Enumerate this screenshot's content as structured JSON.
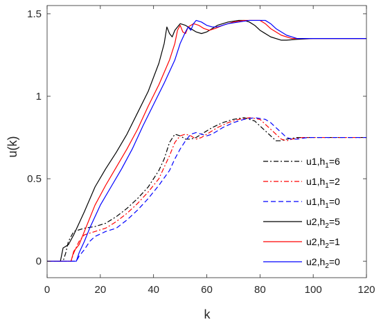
{
  "chart_data": {
    "type": "line",
    "title": "",
    "xlabel": "k",
    "ylabel": "u(k)",
    "xlim": [
      0,
      120
    ],
    "ylim": [
      -0.1,
      1.55
    ],
    "xticks": [
      0,
      20,
      40,
      60,
      80,
      100,
      120
    ],
    "yticks": [
      0,
      0.5,
      1,
      1.5
    ],
    "xtick_labels": [
      "0",
      "20",
      "40",
      "60",
      "80",
      "100",
      "120"
    ],
    "ytick_labels": [
      "0",
      "0.5",
      "1",
      "1.5"
    ],
    "grid": false,
    "legend_position": "bottom-right",
    "series": [
      {
        "name": "u1,h1=6",
        "label_main": "u1,h",
        "label_sub": "1",
        "label_tail": "=6",
        "color": "#000000",
        "dash": "dashdot",
        "points": [
          [
            0,
            0
          ],
          [
            6,
            0
          ],
          [
            7,
            0.05
          ],
          [
            8,
            0.12
          ],
          [
            10,
            0.18
          ],
          [
            14,
            0.2
          ],
          [
            18,
            0.21
          ],
          [
            22,
            0.23
          ],
          [
            26,
            0.27
          ],
          [
            30,
            0.32
          ],
          [
            34,
            0.38
          ],
          [
            38,
            0.45
          ],
          [
            42,
            0.55
          ],
          [
            44,
            0.62
          ],
          [
            46,
            0.72
          ],
          [
            48,
            0.77
          ],
          [
            50,
            0.76
          ],
          [
            52,
            0.74
          ],
          [
            54,
            0.74
          ],
          [
            56,
            0.75
          ],
          [
            58,
            0.77
          ],
          [
            62,
            0.81
          ],
          [
            66,
            0.84
          ],
          [
            70,
            0.86
          ],
          [
            74,
            0.87
          ],
          [
            78,
            0.85
          ],
          [
            80,
            0.82
          ],
          [
            84,
            0.76
          ],
          [
            86,
            0.73
          ],
          [
            88,
            0.73
          ],
          [
            90,
            0.74
          ],
          [
            94,
            0.75
          ],
          [
            100,
            0.75
          ],
          [
            120,
            0.75
          ]
        ]
      },
      {
        "name": "u1,h1=2",
        "label_main": "u1,h",
        "label_sub": "1",
        "label_tail": "=2",
        "color": "#ff0000",
        "dash": "dashdot",
        "points": [
          [
            0,
            0
          ],
          [
            9,
            0
          ],
          [
            10,
            0.05
          ],
          [
            12,
            0.12
          ],
          [
            14,
            0.16
          ],
          [
            18,
            0.18
          ],
          [
            22,
            0.2
          ],
          [
            26,
            0.24
          ],
          [
            30,
            0.29
          ],
          [
            34,
            0.35
          ],
          [
            38,
            0.42
          ],
          [
            42,
            0.5
          ],
          [
            44,
            0.57
          ],
          [
            46,
            0.64
          ],
          [
            48,
            0.72
          ],
          [
            50,
            0.76
          ],
          [
            52,
            0.77
          ],
          [
            54,
            0.76
          ],
          [
            56,
            0.74
          ],
          [
            58,
            0.75
          ],
          [
            60,
            0.77
          ],
          [
            64,
            0.81
          ],
          [
            68,
            0.84
          ],
          [
            72,
            0.86
          ],
          [
            76,
            0.87
          ],
          [
            80,
            0.86
          ],
          [
            82,
            0.83
          ],
          [
            86,
            0.77
          ],
          [
            88,
            0.74
          ],
          [
            90,
            0.73
          ],
          [
            92,
            0.74
          ],
          [
            96,
            0.75
          ],
          [
            100,
            0.75
          ],
          [
            120,
            0.75
          ]
        ]
      },
      {
        "name": "u1,h1=0",
        "label_main": "u1,h",
        "label_sub": "1",
        "label_tail": "=0",
        "color": "#0000ff",
        "dash": "dashed",
        "points": [
          [
            0,
            0
          ],
          [
            11,
            0
          ],
          [
            12,
            0.03
          ],
          [
            14,
            0.07
          ],
          [
            16,
            0.12
          ],
          [
            18,
            0.15
          ],
          [
            22,
            0.18
          ],
          [
            26,
            0.2
          ],
          [
            30,
            0.25
          ],
          [
            34,
            0.31
          ],
          [
            38,
            0.38
          ],
          [
            42,
            0.46
          ],
          [
            46,
            0.55
          ],
          [
            48,
            0.62
          ],
          [
            50,
            0.68
          ],
          [
            52,
            0.73
          ],
          [
            54,
            0.77
          ],
          [
            56,
            0.78
          ],
          [
            58,
            0.77
          ],
          [
            60,
            0.76
          ],
          [
            62,
            0.77
          ],
          [
            66,
            0.81
          ],
          [
            70,
            0.84
          ],
          [
            74,
            0.86
          ],
          [
            78,
            0.87
          ],
          [
            82,
            0.86
          ],
          [
            84,
            0.84
          ],
          [
            88,
            0.78
          ],
          [
            90,
            0.75
          ],
          [
            92,
            0.74
          ],
          [
            94,
            0.74
          ],
          [
            98,
            0.75
          ],
          [
            100,
            0.75
          ],
          [
            120,
            0.75
          ]
        ]
      },
      {
        "name": "u2,h2=5",
        "label_main": "u2,h",
        "label_sub": "2",
        "label_tail": "=5",
        "color": "#000000",
        "dash": "solid",
        "points": [
          [
            0,
            0
          ],
          [
            5,
            0
          ],
          [
            6,
            0.08
          ],
          [
            8,
            0.1
          ],
          [
            10,
            0.16
          ],
          [
            14,
            0.3
          ],
          [
            18,
            0.45
          ],
          [
            22,
            0.56
          ],
          [
            26,
            0.66
          ],
          [
            30,
            0.77
          ],
          [
            34,
            0.9
          ],
          [
            38,
            1.03
          ],
          [
            42,
            1.2
          ],
          [
            44,
            1.32
          ],
          [
            45,
            1.42
          ],
          [
            46,
            1.38
          ],
          [
            47,
            1.36
          ],
          [
            48,
            1.4
          ],
          [
            50,
            1.44
          ],
          [
            52,
            1.43
          ],
          [
            54,
            1.41
          ],
          [
            56,
            1.39
          ],
          [
            58,
            1.38
          ],
          [
            60,
            1.39
          ],
          [
            64,
            1.43
          ],
          [
            68,
            1.45
          ],
          [
            72,
            1.46
          ],
          [
            74,
            1.46
          ],
          [
            76,
            1.45
          ],
          [
            78,
            1.43
          ],
          [
            80,
            1.4
          ],
          [
            84,
            1.36
          ],
          [
            88,
            1.34
          ],
          [
            90,
            1.34
          ],
          [
            94,
            1.345
          ],
          [
            100,
            1.35
          ],
          [
            120,
            1.35
          ]
        ]
      },
      {
        "name": "u2,h2=1",
        "label_main": "u2,h",
        "label_sub": "2",
        "label_tail": "=1",
        "color": "#ff0000",
        "dash": "solid",
        "points": [
          [
            0,
            0
          ],
          [
            9,
            0
          ],
          [
            10,
            0.06
          ],
          [
            12,
            0.1
          ],
          [
            14,
            0.18
          ],
          [
            18,
            0.34
          ],
          [
            22,
            0.46
          ],
          [
            26,
            0.57
          ],
          [
            30,
            0.68
          ],
          [
            34,
            0.8
          ],
          [
            38,
            0.94
          ],
          [
            42,
            1.07
          ],
          [
            46,
            1.22
          ],
          [
            48,
            1.32
          ],
          [
            49,
            1.4
          ],
          [
            50,
            1.43
          ],
          [
            51,
            1.39
          ],
          [
            52,
            1.38
          ],
          [
            53,
            1.42
          ],
          [
            55,
            1.44
          ],
          [
            57,
            1.43
          ],
          [
            59,
            1.41
          ],
          [
            61,
            1.4
          ],
          [
            63,
            1.41
          ],
          [
            66,
            1.43
          ],
          [
            70,
            1.45
          ],
          [
            74,
            1.46
          ],
          [
            78,
            1.46
          ],
          [
            80,
            1.46
          ],
          [
            82,
            1.44
          ],
          [
            84,
            1.41
          ],
          [
            88,
            1.37
          ],
          [
            92,
            1.35
          ],
          [
            96,
            1.35
          ],
          [
            100,
            1.35
          ],
          [
            120,
            1.35
          ]
        ]
      },
      {
        "name": "u2,h2=0",
        "label_main": "u2,h",
        "label_sub": "2",
        "label_tail": "=0",
        "color": "#0000ff",
        "dash": "solid",
        "points": [
          [
            0,
            0
          ],
          [
            11,
            0
          ],
          [
            12,
            0.05
          ],
          [
            14,
            0.12
          ],
          [
            16,
            0.2
          ],
          [
            20,
            0.34
          ],
          [
            24,
            0.45
          ],
          [
            28,
            0.56
          ],
          [
            32,
            0.68
          ],
          [
            36,
            0.82
          ],
          [
            40,
            0.95
          ],
          [
            44,
            1.08
          ],
          [
            48,
            1.22
          ],
          [
            50,
            1.32
          ],
          [
            52,
            1.39
          ],
          [
            53,
            1.42
          ],
          [
            54,
            1.4
          ],
          [
            55,
            1.44
          ],
          [
            56,
            1.46
          ],
          [
            58,
            1.45
          ],
          [
            60,
            1.43
          ],
          [
            62,
            1.42
          ],
          [
            64,
            1.42
          ],
          [
            68,
            1.44
          ],
          [
            72,
            1.45
          ],
          [
            76,
            1.46
          ],
          [
            80,
            1.46
          ],
          [
            82,
            1.46
          ],
          [
            84,
            1.44
          ],
          [
            86,
            1.41
          ],
          [
            88,
            1.39
          ],
          [
            90,
            1.37
          ],
          [
            94,
            1.35
          ],
          [
            100,
            1.35
          ],
          [
            120,
            1.35
          ]
        ]
      }
    ]
  }
}
